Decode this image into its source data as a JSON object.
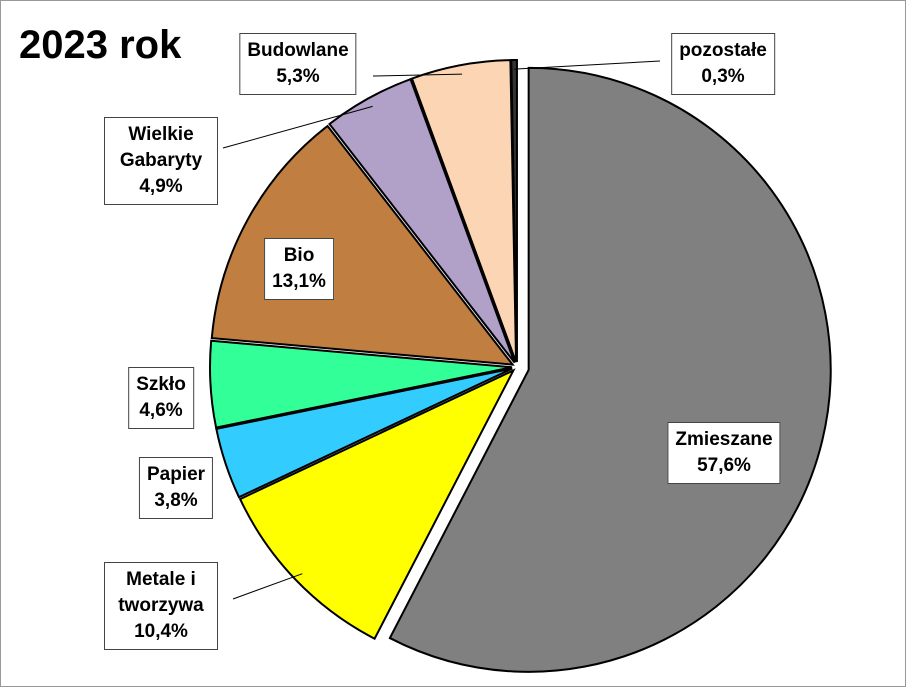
{
  "chart_data": {
    "type": "pie",
    "title": "2023 rok",
    "categories": [
      "Zmieszane",
      "Metale i tworzywa",
      "Papier",
      "Szkło",
      "Bio",
      "Wielkie Gabaryty",
      "Budowlane",
      "pozostałe"
    ],
    "values": [
      57.6,
      10.4,
      3.8,
      4.6,
      13.1,
      4.9,
      5.3,
      0.3
    ],
    "value_labels": [
      "57,6%",
      "10,4%",
      "3,8%",
      "4,6%",
      "13,1%",
      "4,9%",
      "5,3%",
      "0,3%"
    ],
    "colors": [
      "#808080",
      "#ffff00",
      "#33ccff",
      "#33ff99",
      "#c07f40",
      "#b1a0c7",
      "#fcd5b4",
      "#333333"
    ]
  }
}
